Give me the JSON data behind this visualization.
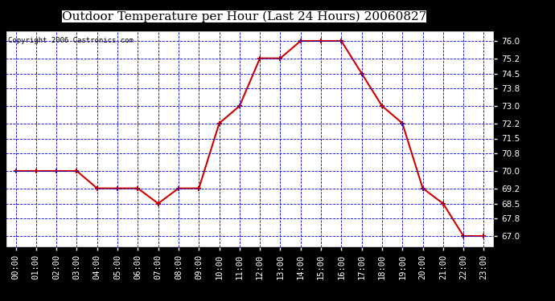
{
  "title": "Outdoor Temperature per Hour (Last 24 Hours) 20060827",
  "copyright": "Copyright 2006 Castronics.com",
  "hours": [
    "00:00",
    "01:00",
    "02:00",
    "03:00",
    "04:00",
    "05:00",
    "06:00",
    "07:00",
    "08:00",
    "09:00",
    "10:00",
    "11:00",
    "12:00",
    "13:00",
    "14:00",
    "15:00",
    "16:00",
    "17:00",
    "18:00",
    "19:00",
    "20:00",
    "21:00",
    "22:00",
    "23:00"
  ],
  "temps": [
    70.0,
    70.0,
    70.0,
    70.0,
    69.2,
    69.2,
    69.2,
    68.5,
    69.2,
    69.2,
    72.2,
    73.0,
    75.2,
    75.2,
    76.0,
    76.0,
    76.0,
    74.5,
    73.0,
    72.2,
    69.2,
    68.5,
    67.0,
    67.0
  ],
  "line_color": "#cc0000",
  "marker_color": "#cc0000",
  "bg_color": "#000000",
  "plot_bg_color": "#ffffff",
  "grid_color": "#0000cc",
  "title_fontsize": 11,
  "copyright_fontsize": 6.5,
  "tick_fontsize": 7.5,
  "ylim_min": 66.5,
  "ylim_max": 76.5,
  "yticks": [
    67.0,
    67.8,
    68.5,
    69.2,
    70.0,
    70.8,
    71.5,
    72.2,
    73.0,
    73.8,
    74.5,
    75.2,
    76.0
  ]
}
